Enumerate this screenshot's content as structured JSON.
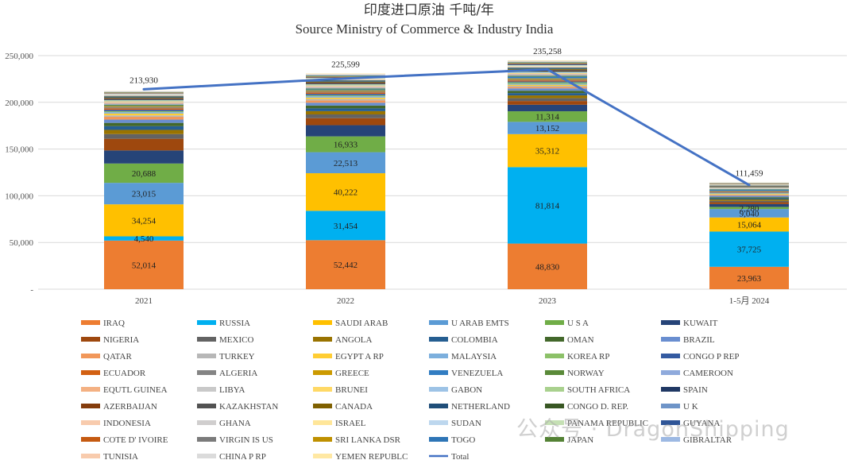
{
  "chart_data": {
    "type": "bar",
    "title": "印度进口原油 千吨/年",
    "subtitle": "Source Ministry of Commerce & Industry India",
    "categories": [
      "2021",
      "2022",
      "2023",
      "1-5月 2024"
    ],
    "ylim": [
      0,
      250000
    ],
    "yticks": [
      "-",
      "50,000",
      "100,000",
      "150,000",
      "200,000",
      "250,000"
    ],
    "grid": true,
    "legend_position": "bottom",
    "series": [
      {
        "name": "IRAQ",
        "color": "#ED7D31",
        "values": [
          52014,
          52442,
          48830,
          23963
        ]
      },
      {
        "name": "RUSSIA",
        "color": "#00B0F0",
        "values": [
          4540,
          31454,
          81814,
          37725
        ]
      },
      {
        "name": "SAUDI ARAB",
        "color": "#FFC000",
        "values": [
          34254,
          40222,
          35312,
          15064
        ]
      },
      {
        "name": "U ARAB EMTS",
        "color": "#5B9BD5",
        "values": [
          23015,
          22513,
          13152,
          9040
        ]
      },
      {
        "name": "U S A",
        "color": "#70AD47",
        "values": [
          20688,
          16933,
          11314,
          2280
        ]
      },
      {
        "name": "KUWAIT",
        "color": "#264478",
        "values": [
          14000,
          12000,
          7000,
          3000
        ]
      },
      {
        "name": "NIGERIA",
        "color": "#9E480E",
        "values": [
          12500,
          7500,
          4000,
          2000
        ]
      },
      {
        "name": "MEXICO",
        "color": "#636363",
        "values": [
          5000,
          4000,
          3000,
          1500
        ]
      },
      {
        "name": "ANGOLA",
        "color": "#997300",
        "values": [
          4500,
          3500,
          3000,
          1500
        ]
      },
      {
        "name": "COLOMBIA",
        "color": "#255E91",
        "values": [
          4000,
          3000,
          2500,
          1200
        ]
      },
      {
        "name": "OMAN",
        "color": "#43682B",
        "values": [
          3500,
          3000,
          2500,
          1200
        ]
      },
      {
        "name": "BRAZIL",
        "color": "#698ED0",
        "values": [
          3500,
          3000,
          2500,
          1500
        ]
      },
      {
        "name": "QATAR",
        "color": "#F1975A",
        "values": [
          3000,
          2500,
          1500,
          900
        ]
      },
      {
        "name": "TURKEY",
        "color": "#B7B7B7",
        "values": [
          1500,
          1500,
          1200,
          600
        ]
      },
      {
        "name": "EGYPT A RP",
        "color": "#FFCD33",
        "values": [
          2000,
          1500,
          1200,
          600
        ]
      },
      {
        "name": "MALAYSIA",
        "color": "#7CAFDD",
        "values": [
          1500,
          1500,
          1000,
          500
        ]
      },
      {
        "name": "KOREA RP",
        "color": "#8CC168",
        "values": [
          1000,
          1000,
          1500,
          500
        ]
      },
      {
        "name": "CONGO P REP",
        "color": "#335AA1",
        "values": [
          1500,
          1500,
          1000,
          500
        ]
      },
      {
        "name": "ECUADOR",
        "color": "#D26012",
        "values": [
          1500,
          1500,
          1200,
          600
        ]
      },
      {
        "name": "ALGERIA",
        "color": "#848484",
        "values": [
          1500,
          1200,
          1000,
          500
        ]
      },
      {
        "name": "GREECE",
        "color": "#CC9A00",
        "values": [
          1000,
          1000,
          1000,
          400
        ]
      },
      {
        "name": "VENEZUELA",
        "color": "#327DC2",
        "values": [
          500,
          1000,
          2000,
          1500
        ]
      },
      {
        "name": "NORWAY",
        "color": "#5A8A39",
        "values": [
          1000,
          1000,
          1000,
          500
        ]
      },
      {
        "name": "CAMEROON",
        "color": "#8FAADC",
        "values": [
          1000,
          1000,
          800,
          400
        ]
      },
      {
        "name": "EQUTL GUINEA",
        "color": "#F4B183",
        "values": [
          1000,
          800,
          700,
          300
        ]
      },
      {
        "name": "LIBYA",
        "color": "#C9C9C9",
        "values": [
          800,
          800,
          700,
          300
        ]
      },
      {
        "name": "BRUNEI",
        "color": "#FFD966",
        "values": [
          800,
          700,
          700,
          300
        ]
      },
      {
        "name": "GABON",
        "color": "#9DC3E6",
        "values": [
          800,
          700,
          700,
          300
        ]
      },
      {
        "name": "SOUTH AFRICA",
        "color": "#A9D18E",
        "values": [
          600,
          600,
          600,
          300
        ]
      },
      {
        "name": "SPAIN",
        "color": "#203864",
        "values": [
          700,
          700,
          700,
          300
        ]
      },
      {
        "name": "AZERBAIJAN",
        "color": "#843C0C",
        "values": [
          700,
          700,
          700,
          300
        ]
      },
      {
        "name": "KAZAKHSTAN",
        "color": "#525252",
        "values": [
          700,
          700,
          700,
          300
        ]
      },
      {
        "name": "CANADA",
        "color": "#7F6000",
        "values": [
          600,
          600,
          800,
          400
        ]
      },
      {
        "name": "NETHERLAND",
        "color": "#1F4E79",
        "values": [
          600,
          600,
          600,
          300
        ]
      },
      {
        "name": "CONGO D. REP.",
        "color": "#385723",
        "values": [
          600,
          600,
          600,
          300
        ]
      },
      {
        "name": "U K",
        "color": "#6E94C8",
        "values": [
          600,
          600,
          600,
          300
        ]
      },
      {
        "name": "INDONESIA",
        "color": "#F8CBAD",
        "values": [
          500,
          500,
          500,
          200
        ]
      },
      {
        "name": "GHANA",
        "color": "#D0CECE",
        "values": [
          500,
          500,
          500,
          200
        ]
      },
      {
        "name": "ISRAEL",
        "color": "#FFE699",
        "values": [
          400,
          500,
          500,
          200
        ]
      },
      {
        "name": "SUDAN",
        "color": "#BDD7EE",
        "values": [
          400,
          400,
          400,
          200
        ]
      },
      {
        "name": "PANAMA REPUBLIC",
        "color": "#C5E0B4",
        "values": [
          300,
          400,
          500,
          200
        ]
      },
      {
        "name": "GUYANA",
        "color": "#2F5597",
        "values": [
          300,
          500,
          800,
          300
        ]
      },
      {
        "name": "COTE D' IVOIRE",
        "color": "#C55A11",
        "values": [
          400,
          500,
          500,
          200
        ]
      },
      {
        "name": "VIRGIN IS US",
        "color": "#7B7B7B",
        "values": [
          300,
          400,
          400,
          200
        ]
      },
      {
        "name": "SRI LANKA DSR",
        "color": "#BF9000",
        "values": [
          300,
          400,
          500,
          200
        ]
      },
      {
        "name": "TOGO",
        "color": "#2E75B6",
        "values": [
          300,
          400,
          500,
          200
        ]
      },
      {
        "name": "JAPAN",
        "color": "#548235",
        "values": [
          300,
          500,
          500,
          200
        ]
      },
      {
        "name": "GIBRALTAR",
        "color": "#9DB9E3",
        "values": [
          300,
          500,
          500,
          200
        ]
      },
      {
        "name": "TUNISIA",
        "color": "#F8CBAD",
        "values": [
          300,
          500,
          400,
          200
        ]
      },
      {
        "name": "CHINA P RP",
        "color": "#DBDBDB",
        "values": [
          232,
          500,
          500,
          200
        ]
      },
      {
        "name": "YEMEN REPUBLC",
        "color": "#FFE8A3",
        "values": [
          200,
          432,
          536,
          159
        ]
      }
    ],
    "total": {
      "name": "Total",
      "color": "#4472C4",
      "values": [
        213930,
        225599,
        235258,
        111459
      ]
    },
    "value_labels": [
      {
        "series": "IRAQ",
        "labels": [
          "52,014",
          "52,442",
          "48,830",
          "23,963"
        ]
      },
      {
        "series": "RUSSIA",
        "labels": [
          "4,540",
          "31,454",
          "81,814",
          "37,725"
        ]
      },
      {
        "series": "SAUDI ARAB",
        "labels": [
          "34,254",
          "40,222",
          "35,312",
          "15,064"
        ]
      },
      {
        "series": "U ARAB EMTS",
        "labels": [
          "23,015",
          "22,513",
          "13,152",
          "9,040"
        ]
      },
      {
        "series": "U S A",
        "labels": [
          "20,688",
          "16,933",
          "11,314",
          "2,280"
        ]
      }
    ],
    "total_labels": [
      "213,930",
      "225,599",
      "235,258",
      "111,459"
    ]
  },
  "watermark": "公众号 · DragonShipping"
}
